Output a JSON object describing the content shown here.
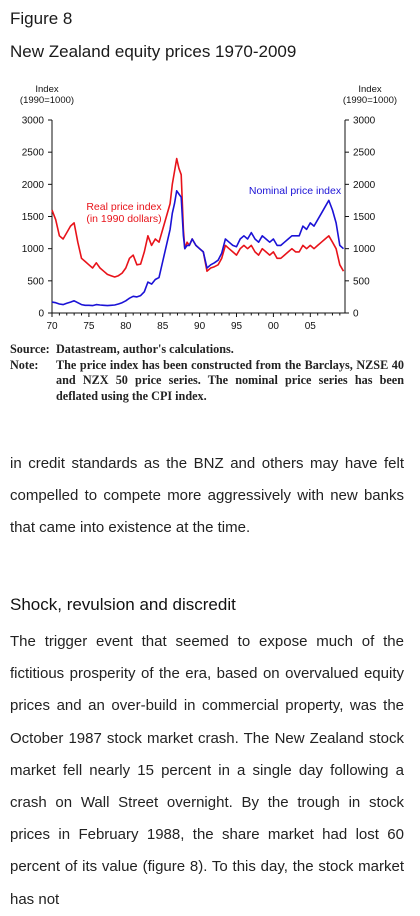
{
  "figure_label": "Figure 8",
  "figure_title": "New Zealand equity prices 1970-2009",
  "notes": {
    "source_label": "Source:",
    "source_text": "Datastream, author's calculations.",
    "note_label": "Note:",
    "note_text": "The price index has been constructed from the Barclays, NZSE 40 and NZX 50 price series. The nominal price series has been deflated using the CPI index."
  },
  "body": {
    "paragraph_1": "in credit standards as the BNZ and others may have felt compelled to compete more aggressively with new banks that came into existence at the time.",
    "section_heading": "Shock, revulsion and discredit",
    "paragraph_2": "The trigger event that seemed to expose much of the fictitious prosperity of the era, based on overvalued equity prices and an over-build in commercial property, was the October 1987 stock market crash. The New Zealand stock market fell nearly 15 percent in a single day following a crash on Wall Street overnight. By the trough in stock prices in February 1988, the share market had lost 60 percent of its value (figure 8). To this day, the stock market has not"
  },
  "chart_data": {
    "type": "line",
    "ylabel_left": [
      "Index",
      "(1990=1000)"
    ],
    "ylabel_right": [
      "Index",
      "(1990=1000)"
    ],
    "ylim": [
      0,
      3000
    ],
    "xlim": [
      1970,
      2009.7
    ],
    "yticks": [
      0,
      500,
      1000,
      1500,
      2000,
      2500,
      3000
    ],
    "xticks": [
      1970,
      1975,
      1980,
      1985,
      1990,
      1995,
      2000,
      2005
    ],
    "xtick_labels": [
      "70",
      "75",
      "80",
      "85",
      "90",
      "95",
      "00",
      "05"
    ],
    "grid": false,
    "series": [
      {
        "name": "Real price index (in 1990 dollars)",
        "label_lines": [
          "Real price index",
          "(in 1990 dollars)"
        ],
        "color": "#e8131a",
        "x": [
          1970,
          1970.5,
          1971,
          1971.5,
          1972,
          1972.5,
          1973,
          1973.5,
          1974,
          1974.5,
          1975,
          1975.5,
          1976,
          1976.5,
          1977,
          1977.5,
          1978,
          1978.5,
          1979,
          1979.5,
          1980,
          1980.5,
          1981,
          1981.5,
          1982,
          1982.5,
          1983,
          1983.5,
          1984,
          1984.5,
          1985,
          1985.5,
          1986,
          1986.3,
          1986.6,
          1986.9,
          1987.2,
          1987.5,
          1987.8,
          1988,
          1988.3,
          1988.6,
          1989,
          1989.5,
          1990,
          1990.5,
          1991,
          1991.5,
          1992,
          1992.5,
          1993,
          1993.5,
          1994,
          1994.5,
          1995,
          1995.5,
          1996,
          1996.5,
          1997,
          1997.5,
          1998,
          1998.5,
          1999,
          1999.5,
          2000,
          2000.5,
          2001,
          2001.5,
          2002,
          2002.5,
          2003,
          2003.5,
          2004,
          2004.5,
          2005,
          2005.5,
          2006,
          2006.5,
          2007,
          2007.5,
          2008,
          2008.5,
          2009,
          2009.5
        ],
        "y": [
          1600,
          1450,
          1200,
          1150,
          1250,
          1350,
          1400,
          1100,
          850,
          800,
          750,
          700,
          780,
          700,
          650,
          600,
          580,
          560,
          580,
          620,
          700,
          850,
          900,
          750,
          760,
          950,
          1200,
          1050,
          1150,
          1100,
          1300,
          1500,
          1700,
          2000,
          2200,
          2400,
          2250,
          2150,
          1300,
          1000,
          1100,
          1050,
          1150,
          1050,
          1000,
          950,
          650,
          700,
          720,
          750,
          850,
          1050,
          1000,
          950,
          900,
          1000,
          1050,
          1000,
          1050,
          950,
          900,
          1000,
          950,
          900,
          950,
          850,
          850,
          900,
          950,
          1000,
          950,
          950,
          1050,
          1000,
          1050,
          1000,
          1050,
          1100,
          1150,
          1200,
          1100,
          1000,
          750,
          650
        ]
      },
      {
        "name": "Nominal price index",
        "label_lines": [
          "Nominal price index"
        ],
        "color": "#1b12d6",
        "x": [
          1970,
          1970.5,
          1971,
          1971.5,
          1972,
          1972.5,
          1973,
          1973.5,
          1974,
          1974.5,
          1975,
          1975.5,
          1976,
          1976.5,
          1977,
          1977.5,
          1978,
          1978.5,
          1979,
          1979.5,
          1980,
          1980.5,
          1981,
          1981.5,
          1982,
          1982.5,
          1983,
          1983.5,
          1984,
          1984.5,
          1985,
          1985.5,
          1986,
          1986.3,
          1986.6,
          1986.9,
          1987.2,
          1987.5,
          1987.8,
          1988,
          1988.3,
          1988.6,
          1989,
          1989.5,
          1990,
          1990.5,
          1991,
          1991.5,
          1992,
          1992.5,
          1993,
          1993.5,
          1994,
          1994.5,
          1995,
          1995.5,
          1996,
          1996.5,
          1997,
          1997.5,
          1998,
          1998.5,
          1999,
          1999.5,
          2000,
          2000.5,
          2001,
          2001.5,
          2002,
          2002.5,
          2003,
          2003.5,
          2004,
          2004.5,
          2005,
          2005.5,
          2006,
          2006.5,
          2007,
          2007.5,
          2008,
          2008.5,
          2009,
          2009.5
        ],
        "y": [
          170,
          160,
          140,
          130,
          150,
          170,
          190,
          160,
          130,
          120,
          120,
          115,
          130,
          125,
          120,
          115,
          120,
          125,
          140,
          160,
          190,
          230,
          260,
          250,
          270,
          330,
          480,
          450,
          520,
          550,
          800,
          1050,
          1300,
          1550,
          1700,
          1900,
          1850,
          1800,
          1200,
          1000,
          1050,
          1050,
          1150,
          1050,
          1000,
          950,
          700,
          750,
          780,
          820,
          930,
          1150,
          1100,
          1050,
          1030,
          1150,
          1200,
          1150,
          1250,
          1150,
          1100,
          1200,
          1150,
          1100,
          1150,
          1050,
          1050,
          1100,
          1150,
          1200,
          1200,
          1200,
          1350,
          1300,
          1400,
          1350,
          1450,
          1550,
          1650,
          1750,
          1600,
          1400,
          1050,
          1000
        ]
      }
    ]
  }
}
